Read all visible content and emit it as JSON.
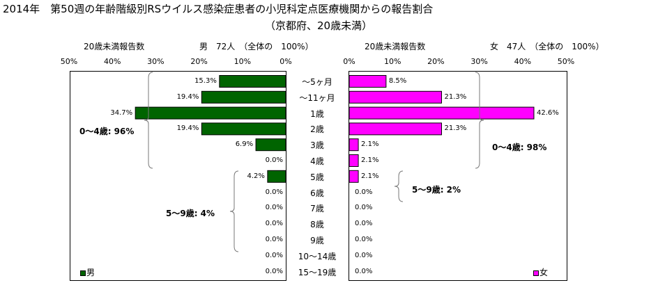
{
  "title": {
    "line1": "2014年　第50週の年齢階級別RSウイルス感染症患者の小児科定点医療機関からの報告割合",
    "line2": "（京都府、20歳未満）"
  },
  "left_panel": {
    "header_label": "20歳未満報告数",
    "header_summary": "男　72人　（全体の　100%）",
    "group_labels": [
      "0～4歳: 96%",
      "5～9歳: 4%"
    ],
    "legend": "男",
    "color": "#006400"
  },
  "right_panel": {
    "header_label": "20歳未満報告数",
    "header_summary": "女　47人　（全体の　100%）",
    "group_labels": [
      "0～4歳: 98%",
      "5～9歳: 2%"
    ],
    "legend": "女",
    "color": "#ff00ff"
  },
  "chart_data": {
    "type": "bar",
    "orientation": "horizontal",
    "categories": [
      "～5ヶ月",
      "～11ヶ月",
      "1歳",
      "2歳",
      "3歳",
      "4歳",
      "5歳",
      "6歳",
      "7歳",
      "8歳",
      "9歳",
      "10～14歳",
      "15～19歳"
    ],
    "axis_ticks": [
      "50%",
      "40%",
      "30%",
      "20%",
      "10%",
      "0%"
    ],
    "axis_ticks_right": [
      "0%",
      "10%",
      "20%",
      "30%",
      "40%",
      "50%"
    ],
    "xlim": [
      0,
      50
    ],
    "series": [
      {
        "name": "男",
        "values": [
          15.3,
          19.4,
          34.7,
          19.4,
          6.9,
          0.0,
          4.2,
          0.0,
          0.0,
          0.0,
          0.0,
          0.0,
          0.0
        ],
        "labels": [
          "15.3%",
          "19.4%",
          "34.7%",
          "19.4%",
          "6.9%",
          "0.0%",
          "4.2%",
          "0.0%",
          "0.0%",
          "0.0%",
          "0.0%",
          "0.0%",
          "0.0%"
        ]
      },
      {
        "name": "女",
        "values": [
          8.5,
          21.3,
          42.6,
          21.3,
          2.1,
          2.1,
          2.1,
          0.0,
          0.0,
          0.0,
          0.0,
          0.0,
          0.0
        ],
        "labels": [
          "8.5%",
          "21.3%",
          "42.6%",
          "21.3%",
          "2.1%",
          "2.1%",
          "2.1%",
          "0.0%",
          "0.0%",
          "0.0%",
          "0.0%",
          "0.0%",
          "0.0%"
        ]
      }
    ]
  }
}
